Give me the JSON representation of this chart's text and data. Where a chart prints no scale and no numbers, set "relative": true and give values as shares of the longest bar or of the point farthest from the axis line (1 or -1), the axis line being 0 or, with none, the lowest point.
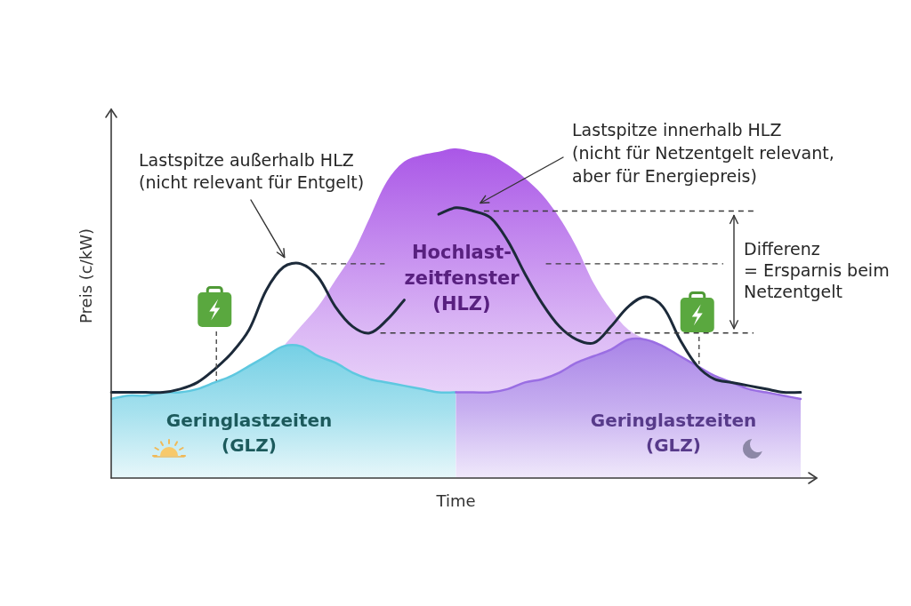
{
  "chart_data": {
    "type": "line",
    "relative": true,
    "xlabel": "Time",
    "ylabel": "Preis (c/kW)",
    "categories": [
      null,
      null,
      null,
      null,
      null,
      null,
      null,
      null,
      null,
      null,
      null,
      null,
      null,
      null,
      null,
      null,
      null,
      null,
      null,
      null,
      null,
      null,
      null,
      null,
      null,
      null,
      null,
      null,
      null,
      null,
      null,
      null,
      null,
      null,
      null,
      null,
      null,
      null,
      null,
      null,
      null
    ],
    "series": [
      {
        "type": "area",
        "color": "#a64ee6",
        "values": [
          null,
          null,
          null,
          null,
          null,
          null,
          null,
          null,
          null,
          null,
          0.4,
          0.46,
          0.52,
          0.6,
          0.68,
          0.79,
          0.9,
          0.96,
          0.98,
          0.99,
          1,
          0.99,
          0.98,
          0.95,
          0.91,
          0.86,
          0.79,
          0.7,
          0.59,
          0.51,
          0.45,
          0.42,
          null,
          null,
          null,
          null,
          null,
          null,
          null,
          null,
          null
        ]
      },
      {
        "type": "area",
        "color": "#5ec8e0",
        "values": [
          0.24,
          0.25,
          0.25,
          0.26,
          0.26,
          0.27,
          0.29,
          0.31,
          0.34,
          0.37,
          0.4,
          0.4,
          0.37,
          0.35,
          0.32,
          0.3,
          0.29,
          0.28,
          0.27,
          0.26,
          0.26,
          null,
          null,
          null,
          null,
          null,
          null,
          null,
          null,
          null,
          null,
          null,
          null,
          null,
          null,
          null,
          null,
          null,
          null,
          null,
          null
        ]
      },
      {
        "type": "area",
        "color": "#9a6ee3",
        "values": [
          null,
          null,
          null,
          null,
          null,
          null,
          null,
          null,
          null,
          null,
          null,
          null,
          null,
          null,
          null,
          null,
          null,
          null,
          null,
          null,
          0.26,
          0.26,
          0.26,
          0.27,
          0.29,
          0.3,
          0.32,
          0.35,
          0.37,
          0.39,
          0.42,
          0.42,
          0.4,
          0.37,
          0.34,
          0.31,
          0.29,
          0.27,
          0.26,
          0.25,
          0.24
        ]
      },
      {
        "type": "line",
        "color": "#1c2a3a",
        "values": [
          0.26,
          0.26,
          0.26,
          0.26,
          0.27,
          0.29,
          0.33,
          0.38,
          0.45,
          0.57,
          0.64,
          0.65,
          0.61,
          0.52,
          0.46,
          0.44,
          0.48,
          0.54,
          null,
          0.8,
          0.82,
          0.81,
          0.79,
          0.72,
          0.62,
          0.53,
          0.46,
          0.42,
          0.41,
          0.46,
          0.52,
          0.55,
          0.52,
          0.42,
          0.34,
          0.3,
          0.29,
          0.28,
          0.27,
          0.26,
          0.26
        ]
      }
    ],
    "ref_lines": [
      {
        "axis": "y",
        "value": 0.81,
        "color": "#3a3a3a",
        "line_style": "dashed"
      },
      {
        "axis": "y",
        "value": 0.65,
        "color": "#3a3a3a",
        "line_style": "dashed"
      },
      {
        "axis": "y",
        "value": 0.44,
        "color": "#3a3a3a",
        "line_style": "dashed"
      }
    ],
    "annotations": [
      "Lastspitze außerhalb HLZ\n(nicht relevant für Entgelt)",
      "Lastspitze innerhalb HLZ\n(nicht für Netzentgelt relevant,\naber für Energiepreis)",
      "Hochlast-\nzeitfenster\n(HLZ)",
      "Geringlastzeiten\n(GLZ)",
      "Geringlastzeiten\n(GLZ)",
      "Differenz\n= Ersparnis beim\nNetzentgelt"
    ],
    "grid": false,
    "legend": false,
    "tick_labels": false,
    "marker": "none"
  }
}
